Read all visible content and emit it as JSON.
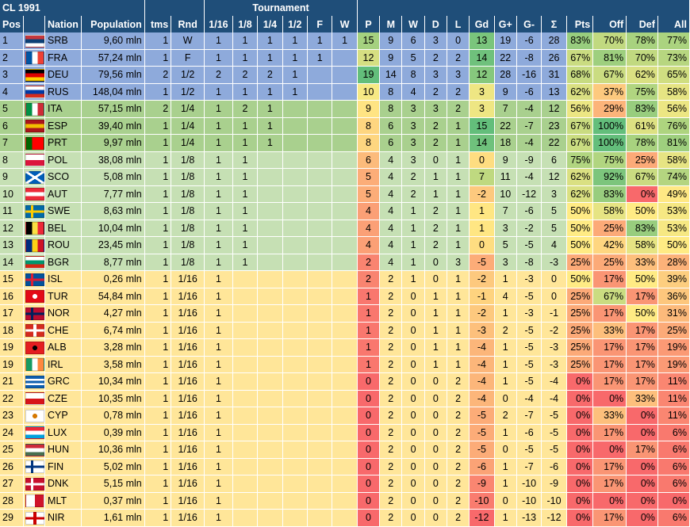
{
  "title": "CL 1991",
  "group_header": "Tournament",
  "columns": [
    "Pos",
    "",
    "Nation",
    "Population",
    "tms",
    "Rnd",
    "1/16",
    "1/8",
    "1/4",
    "1/2",
    "F",
    "W",
    "P",
    "M",
    "W",
    "D",
    "L",
    "Gd",
    "G+",
    "G-",
    "Σ",
    "Pts",
    "Off",
    "Def",
    "All"
  ],
  "rows": [
    {
      "pos": "1",
      "code": "SRB",
      "pop": "9,60 mln",
      "tms": "1",
      "rnd": "W",
      "t": [
        "1",
        "1",
        "1",
        "1",
        "1",
        "1"
      ],
      "p": "15",
      "m": "9",
      "w": "6",
      "d": "3",
      "l": "0",
      "gd": "13",
      "gp": "19",
      "gm": "-6",
      "sum": "28",
      "pts": "83%",
      "off": "70%",
      "def": "78%",
      "all": "77%"
    },
    {
      "pos": "2",
      "code": "FRA",
      "pop": "57,24 mln",
      "tms": "1",
      "rnd": "F",
      "t": [
        "1",
        "1",
        "1",
        "1",
        "1",
        ""
      ],
      "p": "12",
      "m": "9",
      "w": "5",
      "d": "2",
      "l": "2",
      "gd": "14",
      "gp": "22",
      "gm": "-8",
      "sum": "26",
      "pts": "67%",
      "off": "81%",
      "def": "70%",
      "all": "73%"
    },
    {
      "pos": "3",
      "code": "DEU",
      "pop": "79,56 mln",
      "tms": "2",
      "rnd": "1/2",
      "t": [
        "2",
        "2",
        "2",
        "1",
        "",
        ""
      ],
      "p": "19",
      "m": "14",
      "w": "8",
      "d": "3",
      "l": "3",
      "gd": "12",
      "gp": "28",
      "gm": "-16",
      "sum": "31",
      "pts": "68%",
      "off": "67%",
      "def": "62%",
      "all": "65%"
    },
    {
      "pos": "4",
      "code": "RUS",
      "pop": "148,04 mln",
      "tms": "1",
      "rnd": "1/2",
      "t": [
        "1",
        "1",
        "1",
        "1",
        "",
        ""
      ],
      "p": "10",
      "m": "8",
      "w": "4",
      "d": "2",
      "l": "2",
      "gd": "3",
      "gp": "9",
      "gm": "-6",
      "sum": "13",
      "pts": "62%",
      "off": "37%",
      "def": "75%",
      "all": "58%"
    },
    {
      "pos": "5",
      "code": "ITA",
      "pop": "57,15 mln",
      "tms": "2",
      "rnd": "1/4",
      "t": [
        "1",
        "2",
        "1",
        "",
        "",
        ""
      ],
      "p": "9",
      "m": "8",
      "w": "3",
      "d": "3",
      "l": "2",
      "gd": "3",
      "gp": "7",
      "gm": "-4",
      "sum": "12",
      "pts": "56%",
      "off": "29%",
      "def": "83%",
      "all": "56%"
    },
    {
      "pos": "6",
      "code": "ESP",
      "pop": "39,40 mln",
      "tms": "1",
      "rnd": "1/4",
      "t": [
        "1",
        "1",
        "1",
        "",
        "",
        ""
      ],
      "p": "8",
      "m": "6",
      "w": "3",
      "d": "2",
      "l": "1",
      "gd": "15",
      "gp": "22",
      "gm": "-7",
      "sum": "23",
      "pts": "67%",
      "off": "100%",
      "def": "61%",
      "all": "76%"
    },
    {
      "pos": "7",
      "code": "PRT",
      "pop": "9,97 mln",
      "tms": "1",
      "rnd": "1/4",
      "t": [
        "1",
        "1",
        "1",
        "",
        "",
        ""
      ],
      "p": "8",
      "m": "6",
      "w": "3",
      "d": "2",
      "l": "1",
      "gd": "14",
      "gp": "18",
      "gm": "-4",
      "sum": "22",
      "pts": "67%",
      "off": "100%",
      "def": "78%",
      "all": "81%"
    },
    {
      "pos": "8",
      "code": "POL",
      "pop": "38,08 mln",
      "tms": "1",
      "rnd": "1/8",
      "t": [
        "1",
        "1",
        "",
        "",
        "",
        ""
      ],
      "p": "6",
      "m": "4",
      "w": "3",
      "d": "0",
      "l": "1",
      "gd": "0",
      "gp": "9",
      "gm": "-9",
      "sum": "6",
      "pts": "75%",
      "off": "75%",
      "def": "25%",
      "all": "58%"
    },
    {
      "pos": "9",
      "code": "SCO",
      "pop": "5,08 mln",
      "tms": "1",
      "rnd": "1/8",
      "t": [
        "1",
        "1",
        "",
        "",
        "",
        ""
      ],
      "p": "5",
      "m": "4",
      "w": "2",
      "d": "1",
      "l": "1",
      "gd": "7",
      "gp": "11",
      "gm": "-4",
      "sum": "12",
      "pts": "62%",
      "off": "92%",
      "def": "67%",
      "all": "74%"
    },
    {
      "pos": "10",
      "code": "AUT",
      "pop": "7,77 mln",
      "tms": "1",
      "rnd": "1/8",
      "t": [
        "1",
        "1",
        "",
        "",
        "",
        ""
      ],
      "p": "5",
      "m": "4",
      "w": "2",
      "d": "1",
      "l": "1",
      "gd": "-2",
      "gp": "10",
      "gm": "-12",
      "sum": "3",
      "pts": "62%",
      "off": "83%",
      "def": "0%",
      "all": "49%"
    },
    {
      "pos": "11",
      "code": "SWE",
      "pop": "8,63 mln",
      "tms": "1",
      "rnd": "1/8",
      "t": [
        "1",
        "1",
        "",
        "",
        "",
        ""
      ],
      "p": "4",
      "m": "4",
      "w": "1",
      "d": "2",
      "l": "1",
      "gd": "1",
      "gp": "7",
      "gm": "-6",
      "sum": "5",
      "pts": "50%",
      "off": "58%",
      "def": "50%",
      "all": "53%"
    },
    {
      "pos": "12",
      "code": "BEL",
      "pop": "10,04 mln",
      "tms": "1",
      "rnd": "1/8",
      "t": [
        "1",
        "1",
        "",
        "",
        "",
        ""
      ],
      "p": "4",
      "m": "4",
      "w": "1",
      "d": "2",
      "l": "1",
      "gd": "1",
      "gp": "3",
      "gm": "-2",
      "sum": "5",
      "pts": "50%",
      "off": "25%",
      "def": "83%",
      "all": "53%"
    },
    {
      "pos": "13",
      "code": "ROU",
      "pop": "23,45 mln",
      "tms": "1",
      "rnd": "1/8",
      "t": [
        "1",
        "1",
        "",
        "",
        "",
        ""
      ],
      "p": "4",
      "m": "4",
      "w": "1",
      "d": "2",
      "l": "1",
      "gd": "0",
      "gp": "5",
      "gm": "-5",
      "sum": "4",
      "pts": "50%",
      "off": "42%",
      "def": "58%",
      "all": "50%"
    },
    {
      "pos": "14",
      "code": "BGR",
      "pop": "8,77 mln",
      "tms": "1",
      "rnd": "1/8",
      "t": [
        "1",
        "1",
        "",
        "",
        "",
        ""
      ],
      "p": "2",
      "m": "4",
      "w": "1",
      "d": "0",
      "l": "3",
      "gd": "-5",
      "gp": "3",
      "gm": "-8",
      "sum": "-3",
      "pts": "25%",
      "off": "25%",
      "def": "33%",
      "all": "28%"
    },
    {
      "pos": "15",
      "code": "ISL",
      "pop": "0,26 mln",
      "tms": "1",
      "rnd": "1/16",
      "t": [
        "1",
        "",
        "",
        "",
        "",
        ""
      ],
      "p": "2",
      "m": "2",
      "w": "1",
      "d": "0",
      "l": "1",
      "gd": "-2",
      "gp": "1",
      "gm": "-3",
      "sum": "0",
      "pts": "50%",
      "off": "17%",
      "def": "50%",
      "all": "39%"
    },
    {
      "pos": "16",
      "code": "TUR",
      "pop": "54,84 mln",
      "tms": "1",
      "rnd": "1/16",
      "t": [
        "1",
        "",
        "",
        "",
        "",
        ""
      ],
      "p": "1",
      "m": "2",
      "w": "0",
      "d": "1",
      "l": "1",
      "gd": "-1",
      "gp": "4",
      "gm": "-5",
      "sum": "0",
      "pts": "25%",
      "off": "67%",
      "def": "17%",
      "all": "36%"
    },
    {
      "pos": "17",
      "code": "NOR",
      "pop": "4,27 mln",
      "tms": "1",
      "rnd": "1/16",
      "t": [
        "1",
        "",
        "",
        "",
        "",
        ""
      ],
      "p": "1",
      "m": "2",
      "w": "0",
      "d": "1",
      "l": "1",
      "gd": "-2",
      "gp": "1",
      "gm": "-3",
      "sum": "-1",
      "pts": "25%",
      "off": "17%",
      "def": "50%",
      "all": "31%"
    },
    {
      "pos": "18",
      "code": "CHE",
      "pop": "6,74 mln",
      "tms": "1",
      "rnd": "1/16",
      "t": [
        "1",
        "",
        "",
        "",
        "",
        ""
      ],
      "p": "1",
      "m": "2",
      "w": "0",
      "d": "1",
      "l": "1",
      "gd": "-3",
      "gp": "2",
      "gm": "-5",
      "sum": "-2",
      "pts": "25%",
      "off": "33%",
      "def": "17%",
      "all": "25%"
    },
    {
      "pos": "19",
      "code": "ALB",
      "pop": "3,28 mln",
      "tms": "1",
      "rnd": "1/16",
      "t": [
        "1",
        "",
        "",
        "",
        "",
        ""
      ],
      "p": "1",
      "m": "2",
      "w": "0",
      "d": "1",
      "l": "1",
      "gd": "-4",
      "gp": "1",
      "gm": "-5",
      "sum": "-3",
      "pts": "25%",
      "off": "17%",
      "def": "17%",
      "all": "19%"
    },
    {
      "pos": "19",
      "code": "IRL",
      "pop": "3,58 mln",
      "tms": "1",
      "rnd": "1/16",
      "t": [
        "1",
        "",
        "",
        "",
        "",
        ""
      ],
      "p": "1",
      "m": "2",
      "w": "0",
      "d": "1",
      "l": "1",
      "gd": "-4",
      "gp": "1",
      "gm": "-5",
      "sum": "-3",
      "pts": "25%",
      "off": "17%",
      "def": "17%",
      "all": "19%"
    },
    {
      "pos": "21",
      "code": "GRC",
      "pop": "10,34 mln",
      "tms": "1",
      "rnd": "1/16",
      "t": [
        "1",
        "",
        "",
        "",
        "",
        ""
      ],
      "p": "0",
      "m": "2",
      "w": "0",
      "d": "0",
      "l": "2",
      "gd": "-4",
      "gp": "1",
      "gm": "-5",
      "sum": "-4",
      "pts": "0%",
      "off": "17%",
      "def": "17%",
      "all": "11%"
    },
    {
      "pos": "22",
      "code": "CZE",
      "pop": "10,35 mln",
      "tms": "1",
      "rnd": "1/16",
      "t": [
        "1",
        "",
        "",
        "",
        "",
        ""
      ],
      "p": "0",
      "m": "2",
      "w": "0",
      "d": "0",
      "l": "2",
      "gd": "-4",
      "gp": "0",
      "gm": "-4",
      "sum": "-4",
      "pts": "0%",
      "off": "0%",
      "def": "33%",
      "all": "11%"
    },
    {
      "pos": "23",
      "code": "CYP",
      "pop": "0,78 mln",
      "tms": "1",
      "rnd": "1/16",
      "t": [
        "1",
        "",
        "",
        "",
        "",
        ""
      ],
      "p": "0",
      "m": "2",
      "w": "0",
      "d": "0",
      "l": "2",
      "gd": "-5",
      "gp": "2",
      "gm": "-7",
      "sum": "-5",
      "pts": "0%",
      "off": "33%",
      "def": "0%",
      "all": "11%"
    },
    {
      "pos": "24",
      "code": "LUX",
      "pop": "0,39 mln",
      "tms": "1",
      "rnd": "1/16",
      "t": [
        "1",
        "",
        "",
        "",
        "",
        ""
      ],
      "p": "0",
      "m": "2",
      "w": "0",
      "d": "0",
      "l": "2",
      "gd": "-5",
      "gp": "1",
      "gm": "-6",
      "sum": "-5",
      "pts": "0%",
      "off": "17%",
      "def": "0%",
      "all": "6%"
    },
    {
      "pos": "25",
      "code": "HUN",
      "pop": "10,36 mln",
      "tms": "1",
      "rnd": "1/16",
      "t": [
        "1",
        "",
        "",
        "",
        "",
        ""
      ],
      "p": "0",
      "m": "2",
      "w": "0",
      "d": "0",
      "l": "2",
      "gd": "-5",
      "gp": "0",
      "gm": "-5",
      "sum": "-5",
      "pts": "0%",
      "off": "0%",
      "def": "17%",
      "all": "6%"
    },
    {
      "pos": "26",
      "code": "FIN",
      "pop": "5,02 mln",
      "tms": "1",
      "rnd": "1/16",
      "t": [
        "1",
        "",
        "",
        "",
        "",
        ""
      ],
      "p": "0",
      "m": "2",
      "w": "0",
      "d": "0",
      "l": "2",
      "gd": "-6",
      "gp": "1",
      "gm": "-7",
      "sum": "-6",
      "pts": "0%",
      "off": "17%",
      "def": "0%",
      "all": "6%"
    },
    {
      "pos": "27",
      "code": "DNK",
      "pop": "5,15 mln",
      "tms": "1",
      "rnd": "1/16",
      "t": [
        "1",
        "",
        "",
        "",
        "",
        ""
      ],
      "p": "0",
      "m": "2",
      "w": "0",
      "d": "0",
      "l": "2",
      "gd": "-9",
      "gp": "1",
      "gm": "-10",
      "sum": "-9",
      "pts": "0%",
      "off": "17%",
      "def": "0%",
      "all": "6%"
    },
    {
      "pos": "28",
      "code": "MLT",
      "pop": "0,37 mln",
      "tms": "1",
      "rnd": "1/16",
      "t": [
        "1",
        "",
        "",
        "",
        "",
        ""
      ],
      "p": "0",
      "m": "2",
      "w": "0",
      "d": "0",
      "l": "2",
      "gd": "-10",
      "gp": "0",
      "gm": "-10",
      "sum": "-10",
      "pts": "0%",
      "off": "0%",
      "def": "0%",
      "all": "0%"
    },
    {
      "pos": "29",
      "code": "NIR",
      "pop": "1,61 mln",
      "tms": "1",
      "rnd": "1/16",
      "t": [
        "1",
        "",
        "",
        "",
        "",
        ""
      ],
      "p": "0",
      "m": "2",
      "w": "0",
      "d": "0",
      "l": "2",
      "gd": "-12",
      "gp": "1",
      "gm": "-13",
      "sum": "-12",
      "pts": "0%",
      "off": "17%",
      "def": "0%",
      "all": "6%"
    }
  ],
  "flags": {
    "SRB": [
      "#c6363c",
      "#0c4076",
      "#ffffff"
    ],
    "FRA": [
      "v",
      "#0055a4",
      "#ffffff",
      "#ef4135"
    ],
    "DEU": [
      "#000000",
      "#dd0000",
      "#ffce00"
    ],
    "RUS": [
      "#ffffff",
      "#0039a6",
      "#d52b1e"
    ],
    "ITA": [
      "v",
      "#009246",
      "#ffffff",
      "#ce2b37"
    ],
    "ESP": [
      "#aa151b",
      "#f1bf00",
      "#aa151b"
    ],
    "PRT": [
      "v",
      "#006600",
      "#ff0000",
      "#ff0000"
    ],
    "POL": [
      "#ffffff",
      "#dc143c"
    ],
    "SCO": [
      "x",
      "#005eb8",
      "#ffffff"
    ],
    "AUT": [
      "#ed2939",
      "#ffffff",
      "#ed2939"
    ],
    "SWE": [
      "n",
      "#006aa7",
      "#fecc00"
    ],
    "BEL": [
      "v",
      "#000000",
      "#fae042",
      "#ed2939"
    ],
    "ROU": [
      "v",
      "#002b7f",
      "#fcd116",
      "#ce1126"
    ],
    "BGR": [
      "#ffffff",
      "#00966e",
      "#d62612"
    ],
    "ISL": [
      "n",
      "#02529c",
      "#dc1e35"
    ],
    "TUR": [
      "c",
      "#e30a17",
      "#ffffff"
    ],
    "NOR": [
      "n",
      "#ba0c2f",
      "#00205b"
    ],
    "CHE": [
      "p",
      "#d52b1e",
      "#ffffff"
    ],
    "ALB": [
      "c",
      "#e41e20",
      "#000000"
    ],
    "IRL": [
      "v",
      "#169b62",
      "#ffffff",
      "#ff883e"
    ],
    "GRC": [
      "#0d5eaf",
      "#ffffff",
      "#0d5eaf",
      "#ffffff",
      "#0d5eaf"
    ],
    "CZE": [
      "#ffffff",
      "#d7141a"
    ],
    "CYP": [
      "c",
      "#ffffff",
      "#d57800"
    ],
    "LUX": [
      "#ed2939",
      "#ffffff",
      "#00a1de"
    ],
    "HUN": [
      "#ce2939",
      "#ffffff",
      "#477050"
    ],
    "FIN": [
      "n",
      "#ffffff",
      "#003580"
    ],
    "DNK": [
      "n",
      "#c8102e",
      "#ffffff"
    ],
    "MLT": [
      "v",
      "#ffffff",
      "#cf142b"
    ],
    "NIR": [
      "p",
      "#ffffff",
      "#cc0000"
    ]
  },
  "colors": {
    "header": "#1f4e79",
    "blue": "#8eaadb",
    "green": "#a9d08e",
    "lgreen": "#c6e0b4",
    "yellow": "#ffe699"
  },
  "scales": {
    "p": [
      0,
      19
    ],
    "gd": [
      -12,
      15
    ],
    "pct": [
      0,
      100
    ]
  }
}
